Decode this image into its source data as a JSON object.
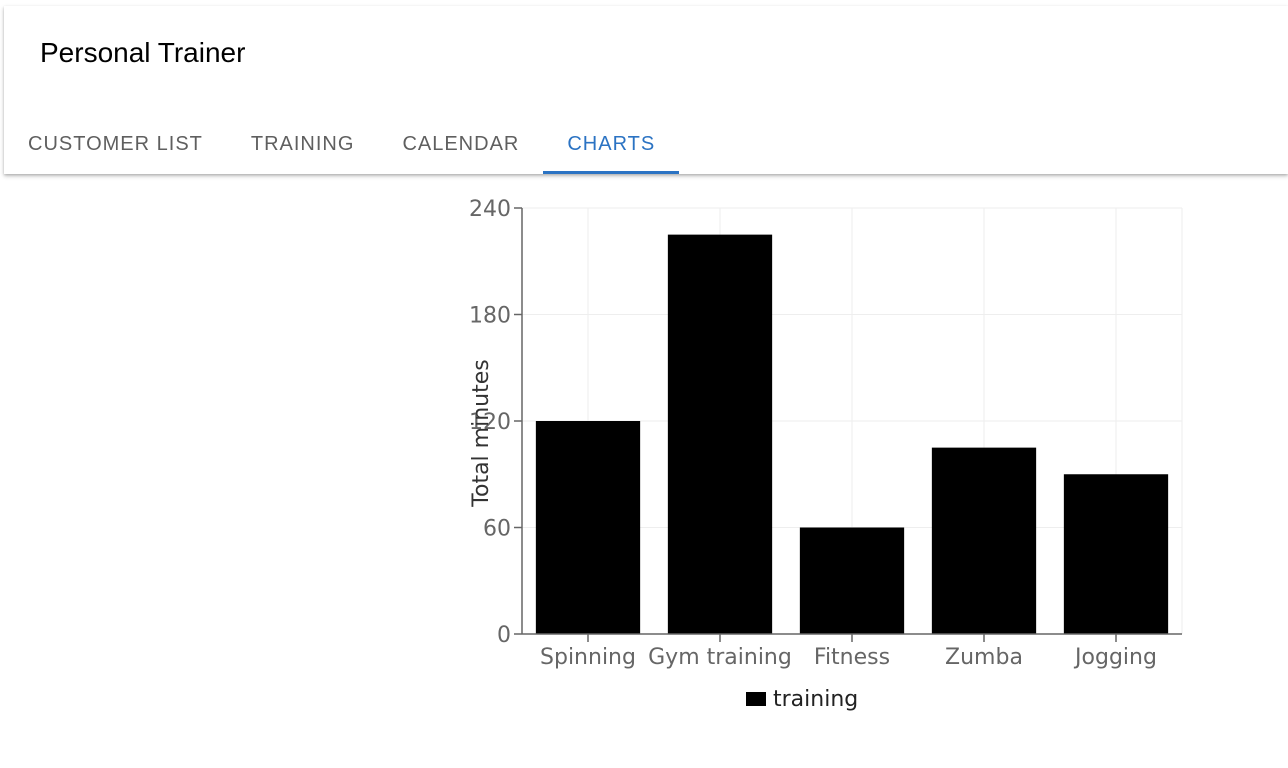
{
  "app": {
    "title": "Personal Trainer"
  },
  "tabs": [
    {
      "label": "CUSTOMER LIST",
      "active": false
    },
    {
      "label": "TRAINING",
      "active": false
    },
    {
      "label": "CALENDAR",
      "active": false
    },
    {
      "label": "CHARTS",
      "active": true
    }
  ],
  "colors": {
    "accent": "#2b73c3",
    "bar": "#000000",
    "tab_text": "#5f5f5f"
  },
  "chart_data": {
    "type": "bar",
    "categories": [
      "Spinning",
      "Gym training",
      "Fitness",
      "Zumba",
      "Jogging"
    ],
    "series": [
      {
        "name": "training",
        "values": [
          120,
          225,
          60,
          105,
          90
        ]
      }
    ],
    "ylabel": "Total minutes",
    "xlabel": "",
    "ylim": [
      0,
      240
    ],
    "yticks": [
      0,
      60,
      120,
      180,
      240
    ],
    "grid": true,
    "legend": "bottom"
  }
}
